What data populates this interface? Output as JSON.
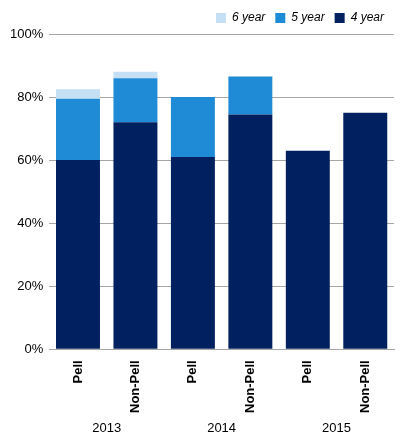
{
  "chart_data": {
    "type": "bar",
    "stacked": true,
    "categories": [
      "Pell",
      "Non-Pell",
      "Pell",
      "Non-Pell",
      "Pell",
      "Non-Pell"
    ],
    "groups": [
      "2013",
      "2014",
      "2015"
    ],
    "series": [
      {
        "name": "4 year",
        "color": "#002060",
        "values": [
          60,
          72,
          61,
          74.5,
          63,
          75
        ]
      },
      {
        "name": "5 year",
        "color": "#1f8bd6",
        "values": [
          19.5,
          14,
          19,
          12,
          null,
          null
        ]
      },
      {
        "name": "6 year",
        "color": "#c5e0f4",
        "values": [
          3,
          2,
          null,
          null,
          null,
          null
        ]
      }
    ],
    "ylim": [
      0,
      100
    ],
    "yticks": [
      {
        "value": 0,
        "label": "0%"
      },
      {
        "value": 20,
        "label": "20%"
      },
      {
        "value": 40,
        "label": "40%"
      },
      {
        "value": 60,
        "label": "60%"
      },
      {
        "value": 80,
        "label": "80%"
      },
      {
        "value": 100,
        "label": "100%"
      }
    ],
    "grid": true,
    "legend": "top right"
  }
}
